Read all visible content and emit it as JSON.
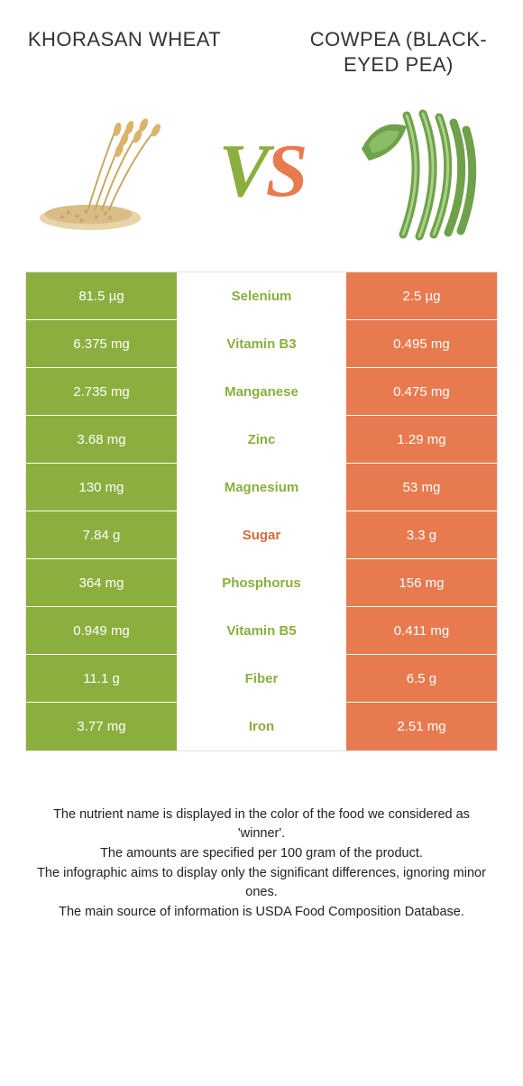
{
  "colors": {
    "left": "#8aaf3e",
    "right": "#e87a4f",
    "mid_bg": "#ffffff",
    "border": "#e3e3e3",
    "vs_v": "#8aaf3e",
    "vs_s": "#e87a4f",
    "sugar": "#d26a3f"
  },
  "header": {
    "left": "KHORASAN WHEAT",
    "right": "COWPEA (BLACK-EYED PEA)"
  },
  "vs": {
    "v": "V",
    "s": "S"
  },
  "rows": [
    {
      "left": "81.5 µg",
      "mid": "Selenium",
      "right": "2.5 µg",
      "winner": "left"
    },
    {
      "left": "6.375 mg",
      "mid": "Vitamin B3",
      "right": "0.495 mg",
      "winner": "left"
    },
    {
      "left": "2.735 mg",
      "mid": "Manganese",
      "right": "0.475 mg",
      "winner": "left"
    },
    {
      "left": "3.68 mg",
      "mid": "Zinc",
      "right": "1.29 mg",
      "winner": "left"
    },
    {
      "left": "130 mg",
      "mid": "Magnesium",
      "right": "53 mg",
      "winner": "left"
    },
    {
      "left": "7.84 g",
      "mid": "Sugar",
      "right": "3.3 g",
      "winner": "sugar"
    },
    {
      "left": "364 mg",
      "mid": "Phosphorus",
      "right": "156 mg",
      "winner": "left"
    },
    {
      "left": "0.949 mg",
      "mid": "Vitamin B5",
      "right": "0.411 mg",
      "winner": "left"
    },
    {
      "left": "11.1 g",
      "mid": "Fiber",
      "right": "6.5 g",
      "winner": "left"
    },
    {
      "left": "3.77 mg",
      "mid": "Iron",
      "right": "2.51 mg",
      "winner": "left"
    }
  ],
  "footnotes": [
    "The nutrient name is displayed in the color of the food we considered as 'winner'.",
    "The amounts are specified per 100 gram of the product.",
    "The infographic aims to display only the significant differences, ignoring minor ones.",
    "The main source of information is USDA Food Composition Database."
  ]
}
